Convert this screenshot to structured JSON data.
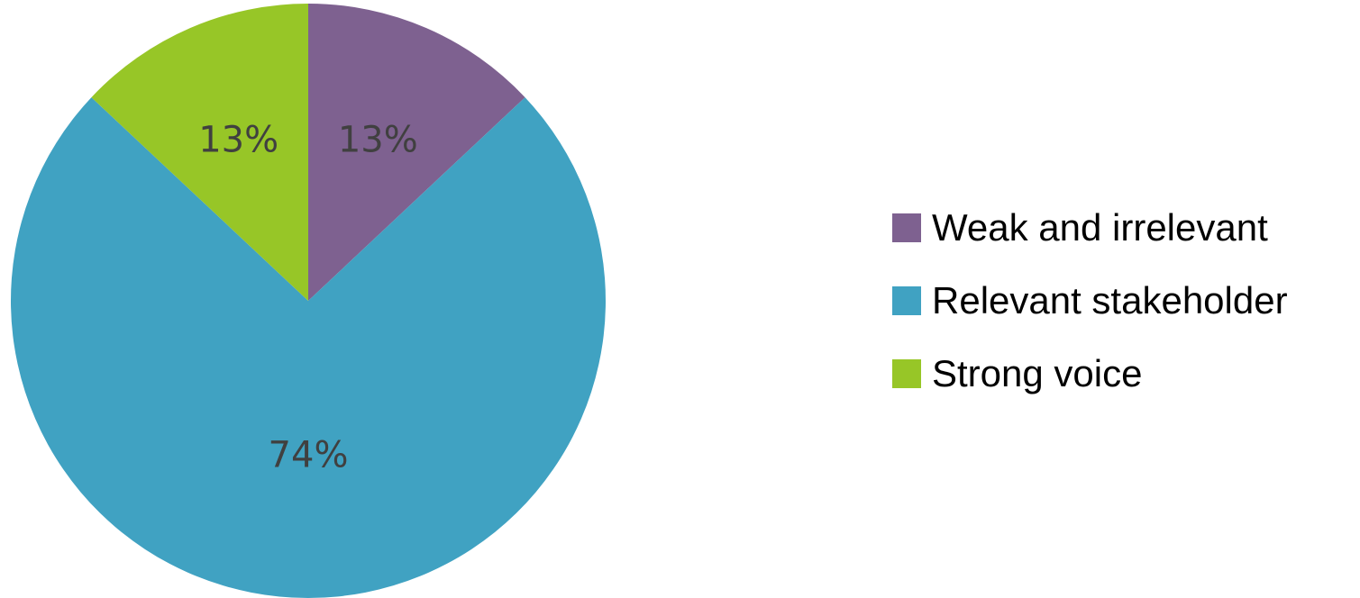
{
  "chart_data": {
    "type": "pie",
    "categories": [
      "Weak and irrelevant",
      "Relevant stakeholder",
      "Strong voice"
    ],
    "values": [
      13,
      74,
      13
    ],
    "data_labels": [
      "13%",
      "74%",
      "13%"
    ],
    "colors": [
      "#7e6190",
      "#40a2c2",
      "#97c627"
    ],
    "start_angle": "12 o'clock",
    "direction": "clockwise",
    "legend_position": "right"
  }
}
